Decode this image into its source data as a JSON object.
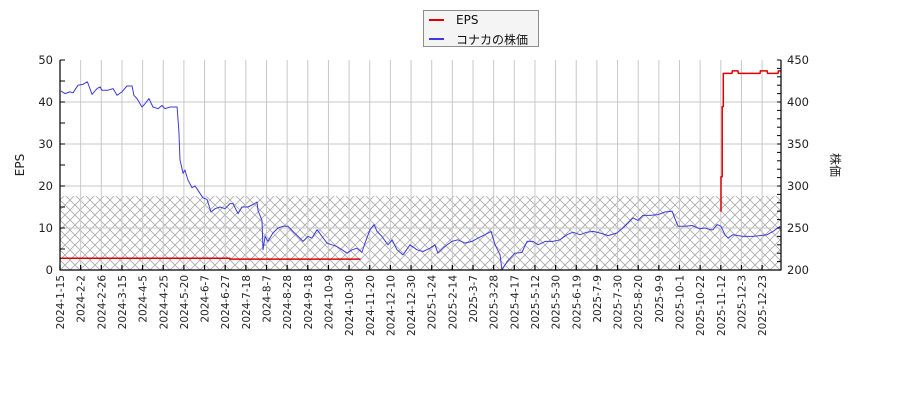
{
  "legend": {
    "items": [
      {
        "label": "EPS",
        "color": "#dd0000"
      },
      {
        "label": "コナカの株価",
        "color": "#3b3bdc"
      }
    ]
  },
  "axes": {
    "left_label": "EPS",
    "right_label": "株価"
  },
  "chart_data": {
    "type": "line",
    "title": "",
    "xlabel": "",
    "ylabel": "EPS",
    "y2label": "株価",
    "ylim": [
      0,
      50
    ],
    "y2lim": [
      200,
      450
    ],
    "yticks": [
      0,
      10,
      20,
      30,
      40,
      50
    ],
    "y2ticks": [
      200,
      250,
      300,
      350,
      400,
      450
    ],
    "grid": true,
    "legend_position": "top-center",
    "x_unit": "position measured in x-tick index (0 = first tick label)",
    "x_ticks": [
      "2024-1-15",
      "2024-2-2",
      "2024-2-26",
      "2024-3-15",
      "2024-4-5",
      "2024-4-25",
      "2024-5-20",
      "2024-6-7",
      "2024-6-27",
      "2024-7-18",
      "2024-8-7",
      "2024-8-28",
      "2024-9-18",
      "2024-10-9",
      "2024-10-30",
      "2024-11-20",
      "2024-12-10",
      "2024-12-30",
      "2025-1-24",
      "2025-2-14",
      "2025-3-7",
      "2025-3-28",
      "2025-4-17",
      "2025-5-12",
      "2025-5-30",
      "2025-6-19",
      "2025-7-9",
      "2025-7-30",
      "2025-8-20",
      "2025-9-9",
      "2025-10-1",
      "2025-10-22",
      "2025-11-12",
      "2025-12-3",
      "2025-12-23"
    ],
    "x_range": [
      0,
      34.92
    ],
    "hatch_region": {
      "axis": "left",
      "from": 0,
      "to": 17.6
    },
    "series": [
      {
        "name": "EPS",
        "axis": "left",
        "color": "#dd0000",
        "segments": [
          [
            [
              0,
              2.8
            ],
            [
              8.23,
              2.8
            ],
            [
              8.23,
              2.6
            ],
            [
              14.55,
              2.6
            ]
          ],
          [
            [
              32.01,
              13.9
            ],
            [
              32.01,
              22.2
            ],
            [
              32.07,
              22.2
            ],
            [
              32.07,
              38.9
            ],
            [
              32.12,
              38.9
            ],
            [
              32.12,
              46.8
            ],
            [
              32.54,
              46.8
            ],
            [
              32.56,
              47.4
            ],
            [
              32.83,
              47.4
            ],
            [
              32.85,
              46.8
            ],
            [
              33.9,
              46.8
            ],
            [
              33.92,
              47.4
            ],
            [
              34.24,
              47.4
            ],
            [
              34.26,
              46.8
            ],
            [
              34.77,
              46.8
            ],
            [
              34.79,
              47.4
            ],
            [
              34.92,
              47.4
            ]
          ]
        ]
      },
      {
        "name": "コナカの株価",
        "axis": "right",
        "color": "#3b3bdc",
        "segments": [
          [
            [
              0.05,
              413
            ],
            [
              0.24,
              410
            ],
            [
              0.48,
              412
            ],
            [
              0.63,
              411
            ],
            [
              0.87,
              420
            ],
            [
              1.11,
              421
            ],
            [
              1.31,
              424
            ],
            [
              1.36,
              422
            ],
            [
              1.55,
              409
            ],
            [
              1.79,
              416
            ],
            [
              1.94,
              418
            ],
            [
              2.03,
              414
            ],
            [
              2.32,
              414
            ],
            [
              2.57,
              416
            ],
            [
              2.76,
              408
            ],
            [
              3.0,
              412
            ],
            [
              3.24,
              419
            ],
            [
              3.49,
              419
            ],
            [
              3.58,
              408
            ],
            [
              3.73,
              404
            ],
            [
              3.97,
              394
            ],
            [
              4.12,
              398
            ],
            [
              4.31,
              404
            ],
            [
              4.5,
              394
            ],
            [
              4.75,
              392
            ],
            [
              4.94,
              396
            ],
            [
              5.08,
              392
            ],
            [
              5.33,
              394
            ],
            [
              5.67,
              394
            ],
            [
              5.76,
              365
            ],
            [
              5.81,
              331
            ],
            [
              5.96,
              315
            ],
            [
              6.05,
              319
            ],
            [
              6.2,
              307
            ],
            [
              6.39,
              298
            ],
            [
              6.54,
              300
            ],
            [
              6.68,
              295
            ],
            [
              6.92,
              286
            ],
            [
              7.12,
              284
            ],
            [
              7.31,
              269
            ],
            [
              7.51,
              273
            ],
            [
              7.75,
              275
            ],
            [
              7.99,
              273
            ],
            [
              8.23,
              279
            ],
            [
              8.38,
              279
            ],
            [
              8.62,
              267
            ],
            [
              8.81,
              275
            ],
            [
              9.1,
              275
            ],
            [
              9.35,
              278
            ],
            [
              9.54,
              281
            ],
            [
              9.59,
              271
            ],
            [
              9.78,
              259
            ],
            [
              9.83,
              224
            ],
            [
              9.93,
              240
            ],
            [
              10.07,
              234
            ],
            [
              10.31,
              244
            ],
            [
              10.56,
              250
            ],
            [
              10.8,
              252
            ],
            [
              11.04,
              252
            ],
            [
              11.28,
              246
            ],
            [
              11.53,
              240
            ],
            [
              11.77,
              234
            ],
            [
              12.01,
              240
            ],
            [
              12.2,
              238
            ],
            [
              12.45,
              248
            ],
            [
              12.69,
              240
            ],
            [
              12.93,
              232
            ],
            [
              13.17,
              230
            ],
            [
              13.41,
              228
            ],
            [
              13.66,
              224
            ],
            [
              13.9,
              220
            ],
            [
              14.14,
              224
            ],
            [
              14.38,
              226
            ],
            [
              14.62,
              221
            ],
            [
              14.77,
              232
            ],
            [
              15.01,
              248
            ],
            [
              15.21,
              254
            ],
            [
              15.35,
              246
            ],
            [
              15.59,
              240
            ],
            [
              15.88,
              230
            ],
            [
              16.08,
              236
            ],
            [
              16.32,
              224
            ],
            [
              16.61,
              218
            ],
            [
              16.95,
              230
            ],
            [
              17.29,
              224
            ],
            [
              17.58,
              222
            ],
            [
              17.92,
              226
            ],
            [
              18.16,
              230
            ],
            [
              18.3,
              220
            ],
            [
              18.64,
              228
            ],
            [
              18.98,
              234
            ],
            [
              19.27,
              236
            ],
            [
              19.61,
              232
            ],
            [
              19.95,
              234
            ],
            [
              20.24,
              238
            ],
            [
              20.58,
              242
            ],
            [
              20.87,
              246
            ],
            [
              21.07,
              230
            ],
            [
              21.31,
              218
            ],
            [
              21.4,
              200
            ],
            [
              21.65,
              210
            ],
            [
              22.03,
              220
            ],
            [
              22.37,
              221
            ],
            [
              22.62,
              234
            ],
            [
              22.91,
              234
            ],
            [
              23.15,
              230
            ],
            [
              23.49,
              234
            ],
            [
              23.87,
              234
            ],
            [
              24.21,
              236
            ],
            [
              24.55,
              242
            ],
            [
              24.84,
              245
            ],
            [
              25.18,
              242
            ],
            [
              25.52,
              245
            ],
            [
              25.81,
              246
            ],
            [
              26.15,
              244
            ],
            [
              26.54,
              241
            ],
            [
              26.97,
              244
            ],
            [
              27.26,
              250
            ],
            [
              27.51,
              256
            ],
            [
              27.75,
              262
            ],
            [
              27.99,
              259
            ],
            [
              28.23,
              265
            ],
            [
              28.57,
              265
            ],
            [
              28.96,
              266
            ],
            [
              29.3,
              269
            ],
            [
              29.64,
              270
            ],
            [
              29.78,
              261
            ],
            [
              29.93,
              252
            ],
            [
              30.27,
              252
            ],
            [
              30.61,
              253
            ],
            [
              31.0,
              249
            ],
            [
              31.24,
              250
            ],
            [
              31.48,
              248
            ],
            [
              31.62,
              248
            ],
            [
              31.82,
              254
            ],
            [
              32.01,
              252
            ],
            [
              32.2,
              242
            ],
            [
              32.35,
              238
            ],
            [
              32.59,
              242
            ],
            [
              33.08,
              240
            ],
            [
              33.56,
              240
            ],
            [
              34.24,
              242
            ],
            [
              34.53,
              246
            ],
            [
              34.87,
              252
            ]
          ]
        ]
      }
    ]
  }
}
